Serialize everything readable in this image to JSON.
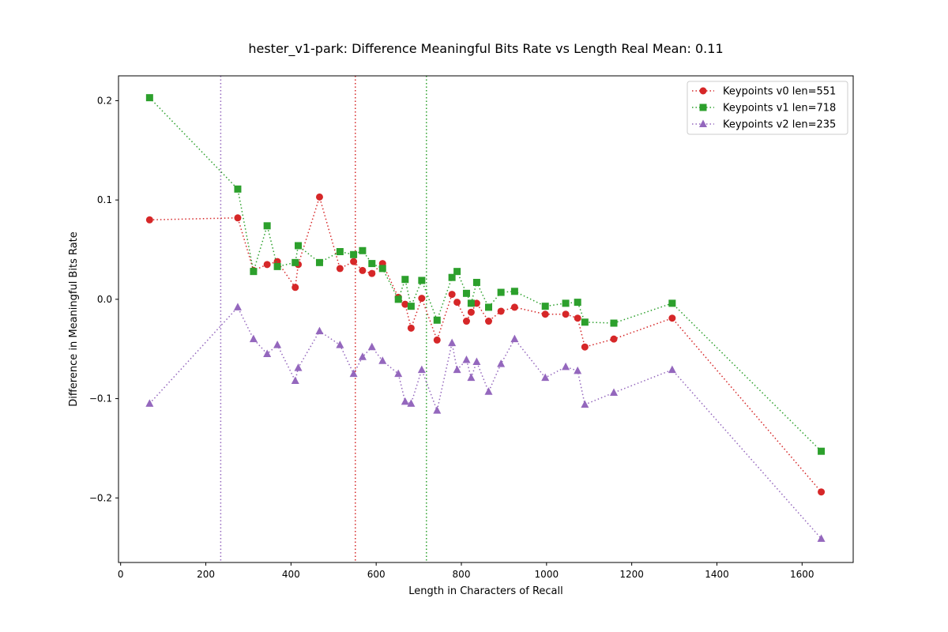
{
  "chart_data": {
    "type": "line",
    "title": "hester_v1-park: Difference Meaningful Bits Rate vs Length Real Mean: 0.11",
    "xlabel": "Length in Characters of Recall",
    "ylabel": "Difference in Meaningful Bits Rate",
    "xlim": [
      -5,
      1720
    ],
    "ylim": [
      -0.265,
      0.225
    ],
    "xticks": [
      0,
      200,
      400,
      600,
      800,
      1000,
      1200,
      1400,
      1600
    ],
    "yticks": [
      -0.2,
      -0.1,
      0.0,
      0.1,
      0.2
    ],
    "xtick_labels": [
      "0",
      "200",
      "400",
      "600",
      "800",
      "1000",
      "1200",
      "1400",
      "1600"
    ],
    "ytick_labels": [
      "−0.2",
      "−0.1",
      "0.0",
      "0.1",
      "0.2"
    ],
    "grid": false,
    "legend_position": "top-right",
    "series": [
      {
        "name": "Keypoints v0 len=551",
        "color": "#d62728",
        "marker": "circle",
        "vline": 551,
        "points": [
          [
            68,
            0.08
          ],
          [
            275,
            0.082
          ],
          [
            312,
            0.029
          ],
          [
            344,
            0.035
          ],
          [
            368,
            0.038
          ],
          [
            410,
            0.012
          ],
          [
            417,
            0.035
          ],
          [
            467,
            0.103
          ],
          [
            515,
            0.031
          ],
          [
            547,
            0.038
          ],
          [
            568,
            0.029
          ],
          [
            590,
            0.026
          ],
          [
            615,
            0.036
          ],
          [
            652,
            0.002
          ],
          [
            668,
            -0.005
          ],
          [
            682,
            -0.029
          ],
          [
            707,
            0.001
          ],
          [
            743,
            -0.041
          ],
          [
            778,
            0.005
          ],
          [
            790,
            -0.003
          ],
          [
            812,
            -0.022
          ],
          [
            823,
            -0.013
          ],
          [
            836,
            -0.004
          ],
          [
            864,
            -0.022
          ],
          [
            893,
            -0.012
          ],
          [
            925,
            -0.008
          ],
          [
            997,
            -0.015
          ],
          [
            1045,
            -0.015
          ],
          [
            1073,
            -0.019
          ],
          [
            1090,
            -0.048
          ],
          [
            1158,
            -0.04
          ],
          [
            1295,
            -0.019
          ],
          [
            1645,
            -0.194
          ]
        ]
      },
      {
        "name": "Keypoints v1 len=718",
        "color": "#2ca02c",
        "marker": "square",
        "vline": 718,
        "points": [
          [
            68,
            0.203
          ],
          [
            275,
            0.111
          ],
          [
            312,
            0.028
          ],
          [
            344,
            0.074
          ],
          [
            368,
            0.033
          ],
          [
            410,
            0.037
          ],
          [
            417,
            0.054
          ],
          [
            467,
            0.037
          ],
          [
            515,
            0.048
          ],
          [
            547,
            0.045
          ],
          [
            568,
            0.049
          ],
          [
            590,
            0.036
          ],
          [
            615,
            0.031
          ],
          [
            652,
            0.0
          ],
          [
            668,
            0.02
          ],
          [
            682,
            -0.007
          ],
          [
            707,
            0.019
          ],
          [
            743,
            -0.021
          ],
          [
            778,
            0.022
          ],
          [
            790,
            0.028
          ],
          [
            812,
            0.006
          ],
          [
            823,
            -0.004
          ],
          [
            836,
            0.017
          ],
          [
            864,
            -0.008
          ],
          [
            893,
            0.007
          ],
          [
            925,
            0.008
          ],
          [
            997,
            -0.007
          ],
          [
            1045,
            -0.004
          ],
          [
            1073,
            -0.003
          ],
          [
            1090,
            -0.023
          ],
          [
            1158,
            -0.024
          ],
          [
            1295,
            -0.004
          ],
          [
            1645,
            -0.153
          ]
        ]
      },
      {
        "name": "Keypoints v2 len=235",
        "color": "#9467bd",
        "marker": "triangle",
        "vline": 235,
        "points": [
          [
            68,
            -0.105
          ],
          [
            275,
            -0.008
          ],
          [
            312,
            -0.04
          ],
          [
            344,
            -0.055
          ],
          [
            368,
            -0.046
          ],
          [
            410,
            -0.082
          ],
          [
            417,
            -0.069
          ],
          [
            467,
            -0.032
          ],
          [
            515,
            -0.046
          ],
          [
            547,
            -0.075
          ],
          [
            568,
            -0.058
          ],
          [
            590,
            -0.048
          ],
          [
            615,
            -0.062
          ],
          [
            652,
            -0.075
          ],
          [
            668,
            -0.103
          ],
          [
            682,
            -0.105
          ],
          [
            707,
            -0.071
          ],
          [
            743,
            -0.112
          ],
          [
            778,
            -0.044
          ],
          [
            790,
            -0.071
          ],
          [
            812,
            -0.061
          ],
          [
            823,
            -0.079
          ],
          [
            836,
            -0.063
          ],
          [
            864,
            -0.093
          ],
          [
            893,
            -0.065
          ],
          [
            925,
            -0.04
          ],
          [
            997,
            -0.079
          ],
          [
            1045,
            -0.068
          ],
          [
            1073,
            -0.072
          ],
          [
            1090,
            -0.106
          ],
          [
            1158,
            -0.094
          ],
          [
            1295,
            -0.071
          ],
          [
            1645,
            -0.241
          ]
        ]
      }
    ]
  }
}
